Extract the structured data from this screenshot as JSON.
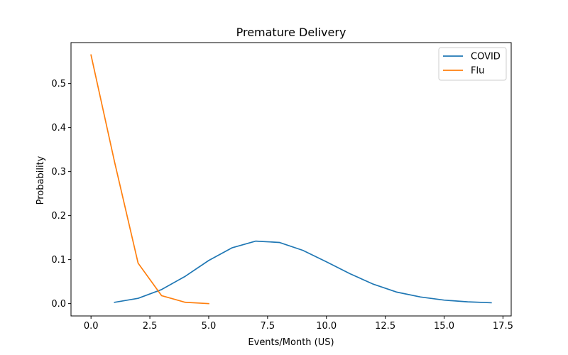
{
  "chart_data": {
    "type": "line",
    "title": "Premature Delivery",
    "xlabel": "Events/Month (US)",
    "ylabel": "Probability",
    "xlim": [
      -0.85,
      17.85
    ],
    "ylim": [
      -0.028,
      0.593
    ],
    "xticks": [
      0.0,
      2.5,
      5.0,
      7.5,
      10.0,
      12.5,
      15.0,
      17.5
    ],
    "xtick_labels": [
      "0.0",
      "2.5",
      "5.0",
      "7.5",
      "10.0",
      "12.5",
      "15.0",
      "17.5"
    ],
    "yticks": [
      0.0,
      0.1,
      0.2,
      0.3,
      0.4,
      0.5
    ],
    "ytick_labels": [
      "0.0",
      "0.1",
      "0.2",
      "0.3",
      "0.4",
      "0.5"
    ],
    "grid": false,
    "legend_position": "top-right",
    "series": [
      {
        "name": "COVID",
        "color": "#1f77b4",
        "x": [
          1,
          2,
          3,
          4,
          5,
          6,
          7,
          8,
          9,
          10,
          11,
          12,
          13,
          14,
          15,
          16,
          17
        ],
        "y": [
          0.003,
          0.012,
          0.032,
          0.062,
          0.098,
          0.127,
          0.142,
          0.139,
          0.121,
          0.095,
          0.068,
          0.044,
          0.026,
          0.015,
          0.008,
          0.004,
          0.002
        ]
      },
      {
        "name": "Flu",
        "color": "#ff7f0e",
        "x": [
          0,
          1,
          2,
          3,
          4,
          5
        ],
        "y": [
          0.565,
          0.322,
          0.092,
          0.018,
          0.003,
          0.0
        ]
      }
    ]
  }
}
